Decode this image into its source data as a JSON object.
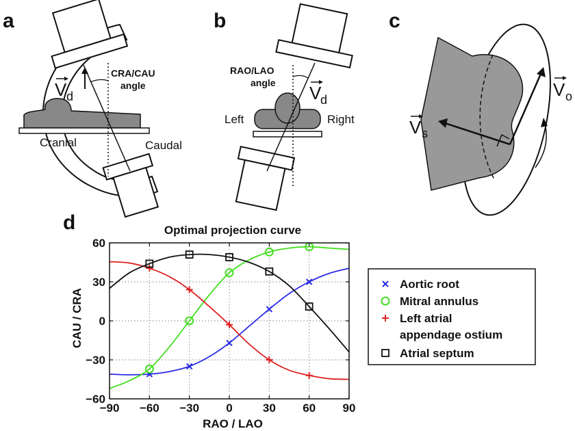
{
  "panels": {
    "a": {
      "letter": "a",
      "vector": "V",
      "vector_sub": "d",
      "angle_label_1": "CRA/CAU",
      "angle_label_2": "angle",
      "left_label": "Cranial",
      "right_label": "Caudal"
    },
    "b": {
      "letter": "b",
      "vector": "V",
      "vector_sub": "d",
      "angle_label_1": "RAO/LAO",
      "angle_label_2": "angle",
      "left_label": "Left",
      "right_label": "Right"
    },
    "c": {
      "letter": "c",
      "vector_s": "V",
      "vector_s_sub": "s",
      "vector_o": "V",
      "vector_o_sub": "o"
    },
    "d": {
      "letter": "d"
    }
  },
  "chart_data": {
    "type": "line",
    "title": "Optimal projection curve",
    "xlabel": "RAO / LAO",
    "ylabel": "CAU / CRA",
    "xlim": [
      -90,
      90
    ],
    "ylim": [
      -60,
      60
    ],
    "xticks": [
      -90,
      -60,
      -30,
      0,
      30,
      60,
      90
    ],
    "yticks": [
      -60,
      -30,
      0,
      30,
      60
    ],
    "grid": true,
    "legend_position": "right",
    "series": [
      {
        "name": "Aortic root",
        "color": "#2a2ae6",
        "marker": "x",
        "x": [
          -90,
          -75,
          -60,
          -45,
          -30,
          -15,
          0,
          15,
          30,
          45,
          60,
          75,
          90
        ],
        "y": [
          -41,
          -41.5,
          -41,
          -39,
          -35,
          -27.5,
          -17,
          -4,
          9,
          21,
          30,
          36.5,
          40.5
        ],
        "marker_x": [
          -60,
          -30,
          0,
          30,
          60
        ],
        "marker_y": [
          -41,
          -35,
          -17,
          9,
          30
        ]
      },
      {
        "name": "Mitral annulus",
        "color": "#44dd22",
        "marker": "o",
        "x": [
          -90,
          -75,
          -60,
          -45,
          -30,
          -15,
          0,
          15,
          30,
          45,
          60,
          75,
          90
        ],
        "y": [
          -52,
          -46,
          -37,
          -20,
          0,
          20,
          37,
          47,
          53,
          56,
          57,
          56,
          55
        ],
        "marker_x": [
          -60,
          -30,
          0,
          30,
          60
        ],
        "marker_y": [
          -37,
          0,
          37,
          53,
          57
        ]
      },
      {
        "name": "Left atrial appendage ostium",
        "name_line1": "Left atrial",
        "name_line2": "appendage ostium",
        "color": "#dd2222",
        "marker": "+",
        "x": [
          -90,
          -75,
          -60,
          -45,
          -30,
          -15,
          0,
          15,
          30,
          45,
          60,
          75,
          90
        ],
        "y": [
          45.5,
          44.5,
          40.5,
          34,
          24,
          11,
          -3,
          -18,
          -30,
          -38,
          -42,
          -44.5,
          -45
        ],
        "marker_x": [
          -60,
          -30,
          0,
          30,
          60
        ],
        "marker_y": [
          40.5,
          24,
          -3,
          -30,
          -42
        ]
      },
      {
        "name": "Atrial septum",
        "color": "#111111",
        "marker": "square",
        "x": [
          -90,
          -75,
          -60,
          -45,
          -30,
          -15,
          0,
          15,
          30,
          45,
          60,
          75,
          90
        ],
        "y": [
          25,
          37,
          44,
          49,
          51,
          51,
          49,
          45,
          38,
          27,
          11,
          -6,
          -24
        ],
        "marker_x": [
          -60,
          -30,
          0,
          30,
          60
        ],
        "marker_y": [
          44,
          51,
          49,
          38,
          11
        ]
      }
    ]
  }
}
